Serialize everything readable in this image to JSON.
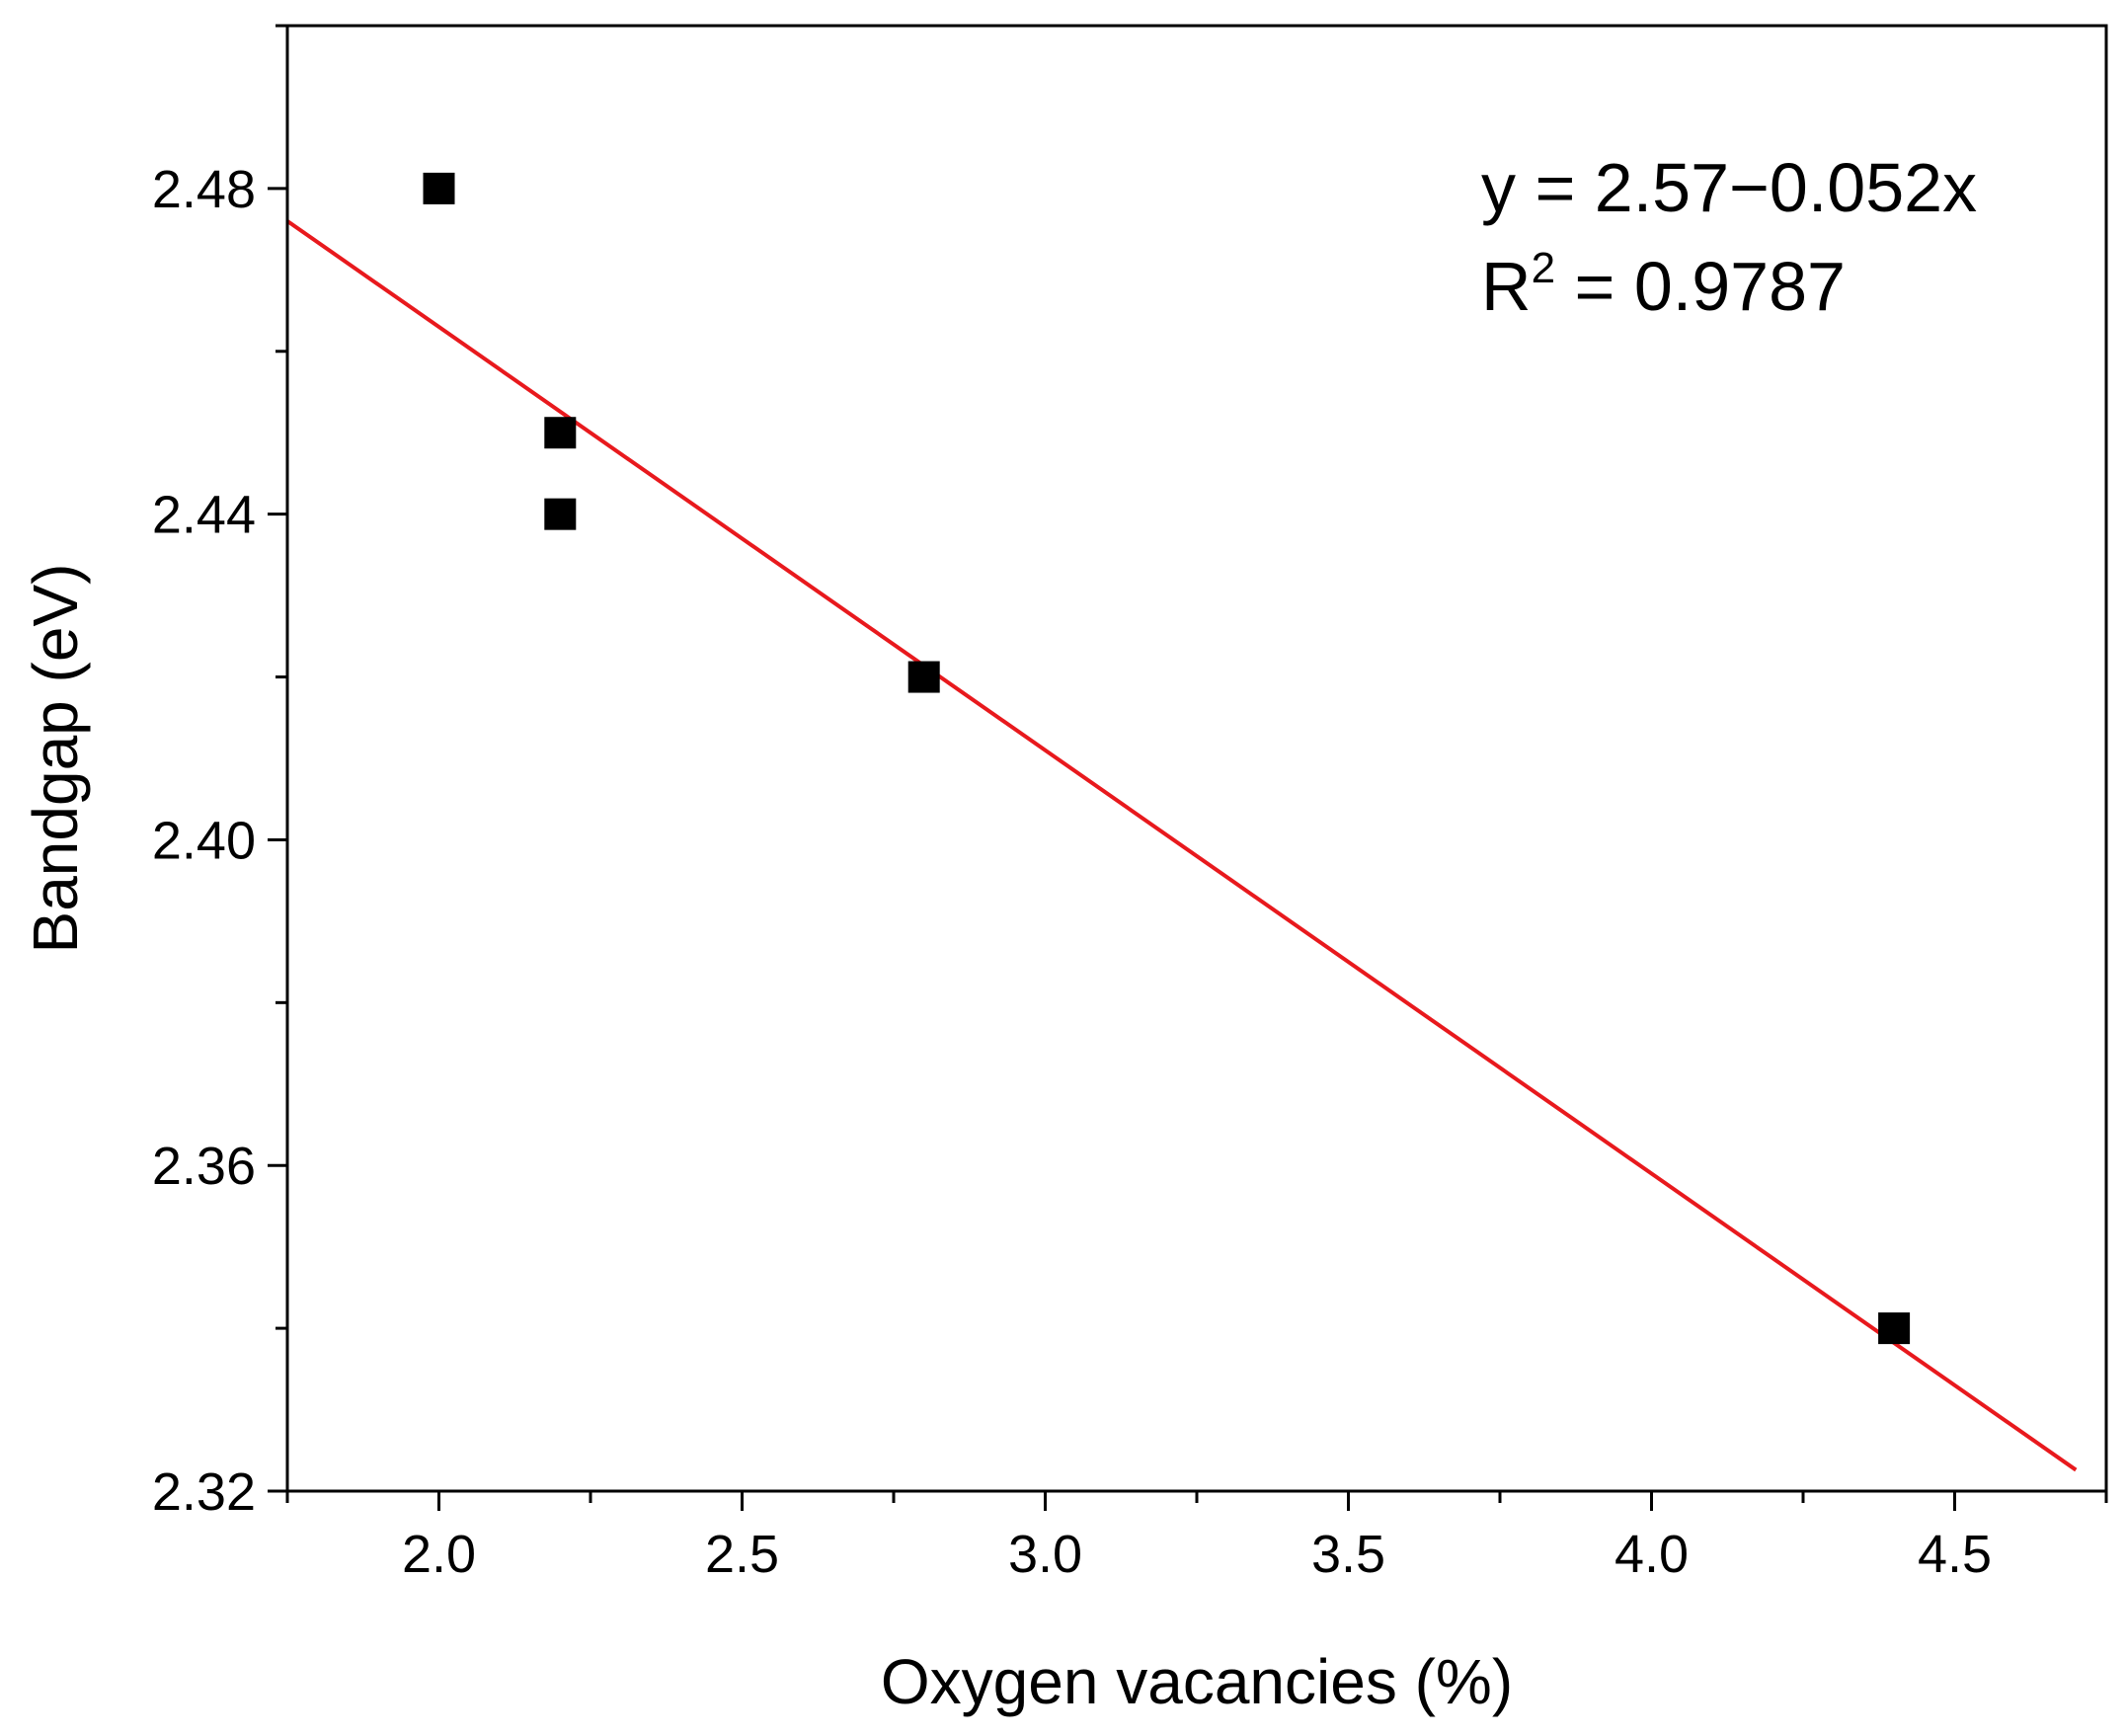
{
  "chart_data": {
    "type": "scatter",
    "xlabel": "Oxygen vacancies (%)",
    "ylabel": "Bandgap (eV)",
    "xlim": [
      1.75,
      4.75
    ],
    "ylim": [
      2.32,
      2.5
    ],
    "x_ticks": [
      2.0,
      2.5,
      3.0,
      3.5,
      4.0,
      4.5
    ],
    "x_tick_labels": [
      "2.0",
      "2.5",
      "3.0",
      "3.5",
      "4.0",
      "4.5"
    ],
    "y_ticks": [
      2.32,
      2.36,
      2.4,
      2.44,
      2.48
    ],
    "y_tick_labels": [
      "2.32",
      "2.36",
      "2.40",
      "2.44",
      "2.48"
    ],
    "grid": false,
    "series": [
      {
        "marker": "square",
        "color": "#000000",
        "points": [
          {
            "x": 2.0,
            "y": 2.48
          },
          {
            "x": 2.2,
            "y": 2.45
          },
          {
            "x": 2.2,
            "y": 2.44
          },
          {
            "x": 2.8,
            "y": 2.42
          },
          {
            "x": 4.4,
            "y": 2.34
          }
        ]
      }
    ],
    "fit": {
      "color": "#e8191d",
      "intercept": 2.567,
      "slope": -0.052,
      "x_range": [
        1.75,
        4.7
      ],
      "equation_text": "y = 2.57−0.052x",
      "r2_prefix": "R",
      "r2_sup": "2",
      "r2_value": " = 0.9787"
    }
  }
}
